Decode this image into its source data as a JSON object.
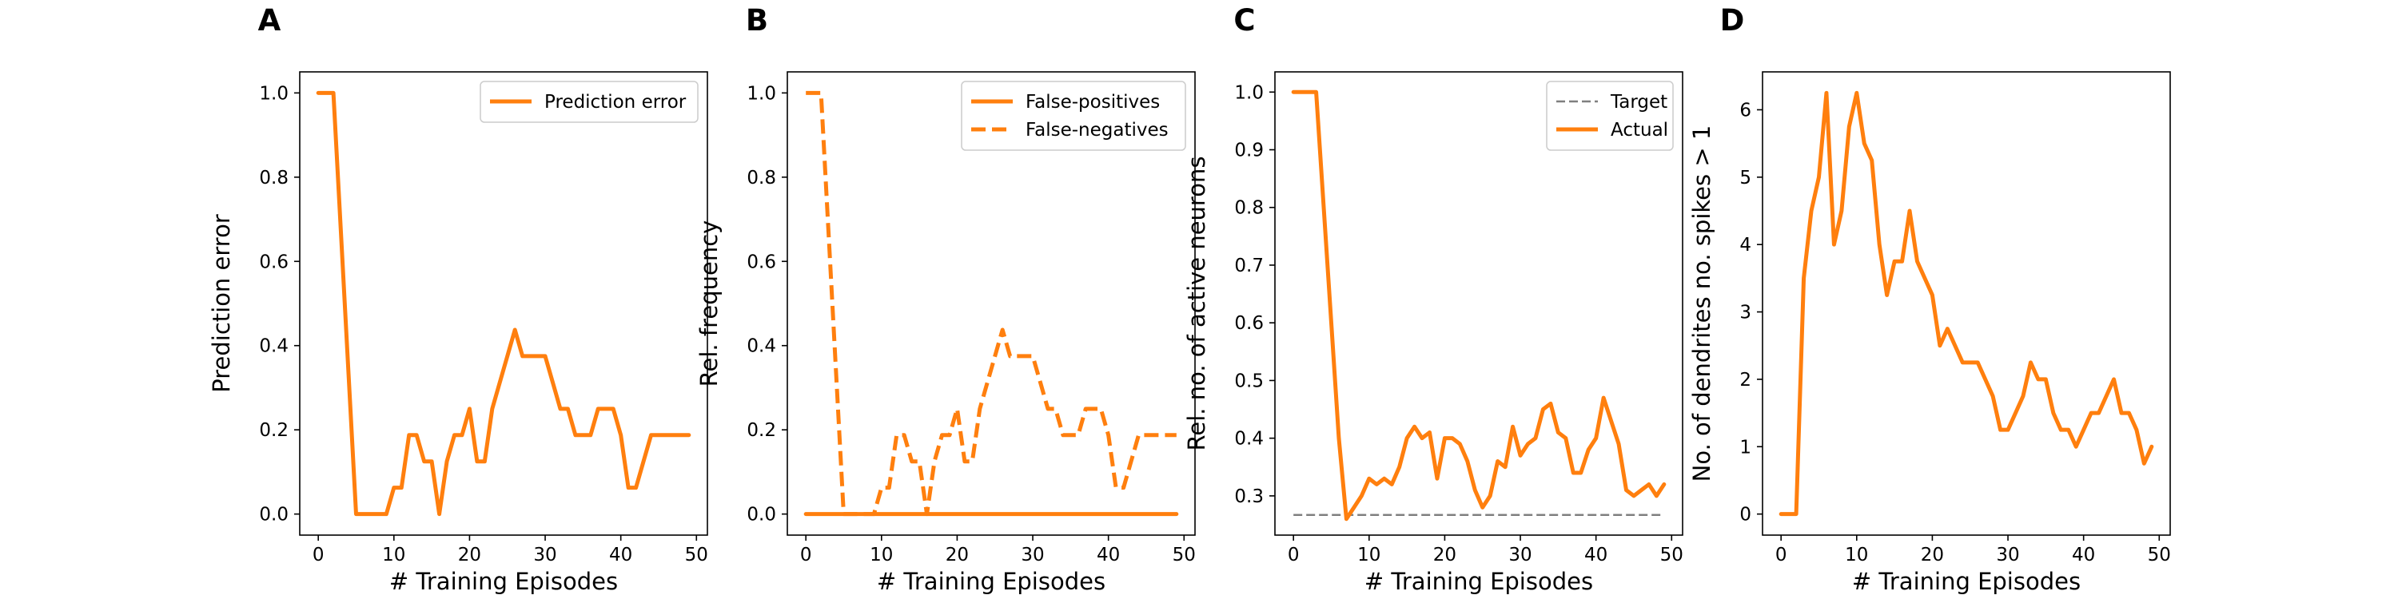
{
  "colors": {
    "series": "#ff7f0e",
    "target": "#7f7f7f",
    "axis": "#000000"
  },
  "chart_data": [
    {
      "type": "line",
      "panel": "A",
      "xlabel": "# Training Episodes",
      "ylabel": "Prediction error",
      "xlim": [
        -2.45,
        51.45
      ],
      "ylim": [
        -0.05,
        1.05
      ],
      "xticks": [
        0,
        10,
        20,
        30,
        40,
        50
      ],
      "yticks": [
        0.0,
        0.2,
        0.4,
        0.6,
        0.8,
        1.0
      ],
      "ytick_labels": [
        "0.0",
        "0.2",
        "0.4",
        "0.6",
        "0.8",
        "1.0"
      ],
      "legend_position": "upper right",
      "grid": false,
      "series": [
        {
          "name": "Prediction error",
          "style": "solid",
          "color": "#ff7f0e",
          "x": [
            0,
            1,
            2,
            3,
            4,
            5,
            6,
            7,
            8,
            9,
            10,
            11,
            12,
            13,
            14,
            15,
            16,
            17,
            18,
            19,
            20,
            21,
            22,
            23,
            24,
            25,
            26,
            27,
            28,
            29,
            30,
            31,
            32,
            33,
            34,
            35,
            36,
            37,
            38,
            39,
            40,
            41,
            42,
            43,
            44,
            45,
            46,
            47,
            48,
            49
          ],
          "y": [
            1.0,
            1.0,
            1.0,
            0.667,
            0.333,
            0.0,
            0.0,
            0.0,
            0.0,
            0.0,
            0.0625,
            0.0625,
            0.1875,
            0.1875,
            0.125,
            0.125,
            0.0,
            0.125,
            0.1875,
            0.1875,
            0.25,
            0.125,
            0.125,
            0.25,
            0.3125,
            0.375,
            0.4375,
            0.375,
            0.375,
            0.375,
            0.375,
            0.3125,
            0.25,
            0.25,
            0.1875,
            0.1875,
            0.1875,
            0.25,
            0.25,
            0.25,
            0.1875,
            0.0625,
            0.0625,
            0.125,
            0.1875,
            0.1875,
            0.1875,
            0.1875,
            0.1875,
            0.1875
          ]
        }
      ]
    },
    {
      "type": "line",
      "panel": "B",
      "xlabel": "# Training Episodes",
      "ylabel": "Rel. frequency",
      "xlim": [
        -2.45,
        51.45
      ],
      "ylim": [
        -0.05,
        1.05
      ],
      "xticks": [
        0,
        10,
        20,
        30,
        40,
        50
      ],
      "yticks": [
        0.0,
        0.2,
        0.4,
        0.6,
        0.8,
        1.0
      ],
      "ytick_labels": [
        "0.0",
        "0.2",
        "0.4",
        "0.6",
        "0.8",
        "1.0"
      ],
      "legend_position": "upper right",
      "grid": false,
      "series": [
        {
          "name": "False-positives",
          "style": "solid",
          "color": "#ff7f0e",
          "x": [
            0,
            1,
            2,
            3,
            4,
            5,
            6,
            7,
            8,
            9,
            10,
            11,
            12,
            13,
            14,
            15,
            16,
            17,
            18,
            19,
            20,
            21,
            22,
            23,
            24,
            25,
            26,
            27,
            28,
            29,
            30,
            31,
            32,
            33,
            34,
            35,
            36,
            37,
            38,
            39,
            40,
            41,
            42,
            43,
            44,
            45,
            46,
            47,
            48,
            49
          ],
          "y": [
            0,
            0,
            0,
            0,
            0,
            0,
            0,
            0,
            0,
            0,
            0,
            0,
            0,
            0,
            0,
            0,
            0,
            0,
            0,
            0,
            0,
            0,
            0,
            0,
            0,
            0,
            0,
            0,
            0,
            0,
            0,
            0,
            0,
            0,
            0,
            0,
            0,
            0,
            0,
            0,
            0,
            0,
            0,
            0,
            0,
            0,
            0,
            0,
            0,
            0
          ]
        },
        {
          "name": "False-negatives",
          "style": "dashed",
          "color": "#ff7f0e",
          "x": [
            0,
            1,
            2,
            3,
            4,
            5,
            6,
            7,
            8,
            9,
            10,
            11,
            12,
            13,
            14,
            15,
            16,
            17,
            18,
            19,
            20,
            21,
            22,
            23,
            24,
            25,
            26,
            27,
            28,
            29,
            30,
            31,
            32,
            33,
            34,
            35,
            36,
            37,
            38,
            39,
            40,
            41,
            42,
            43,
            44,
            45,
            46,
            47,
            48,
            49
          ],
          "y": [
            1.0,
            1.0,
            1.0,
            0.667,
            0.333,
            0.0,
            0.0,
            0.0,
            0.0,
            0.0,
            0.0625,
            0.0625,
            0.1875,
            0.1875,
            0.125,
            0.125,
            0.0,
            0.125,
            0.1875,
            0.1875,
            0.25,
            0.125,
            0.125,
            0.25,
            0.3125,
            0.375,
            0.4375,
            0.375,
            0.375,
            0.375,
            0.375,
            0.3125,
            0.25,
            0.25,
            0.1875,
            0.1875,
            0.1875,
            0.25,
            0.25,
            0.25,
            0.1875,
            0.0625,
            0.0625,
            0.125,
            0.1875,
            0.1875,
            0.1875,
            0.1875,
            0.1875,
            0.1875
          ]
        }
      ]
    },
    {
      "type": "line",
      "panel": "C",
      "xlabel": "# Training Episodes",
      "ylabel": "Rel. no. of active neurons",
      "xlim": [
        -2.45,
        51.45
      ],
      "ylim": [
        0.232,
        1.035
      ],
      "xticks": [
        0,
        10,
        20,
        30,
        40,
        50
      ],
      "yticks": [
        0.3,
        0.4,
        0.5,
        0.6,
        0.7,
        0.8,
        0.9,
        1.0
      ],
      "ytick_labels": [
        "0.3",
        "0.4",
        "0.5",
        "0.6",
        "0.7",
        "0.8",
        "0.9",
        "1.0"
      ],
      "legend_position": "upper right",
      "grid": false,
      "series": [
        {
          "name": "Target",
          "style": "dashed",
          "color": "#7f7f7f",
          "x": [
            0,
            49
          ],
          "y": [
            0.267,
            0.267
          ]
        },
        {
          "name": "Actual",
          "style": "solid",
          "color": "#ff7f0e",
          "x": [
            0,
            1,
            2,
            3,
            4,
            5,
            6,
            7,
            8,
            9,
            10,
            11,
            12,
            13,
            14,
            15,
            16,
            17,
            18,
            19,
            20,
            21,
            22,
            23,
            24,
            25,
            26,
            27,
            28,
            29,
            30,
            31,
            32,
            33,
            34,
            35,
            36,
            37,
            38,
            39,
            40,
            41,
            42,
            43,
            44,
            45,
            46,
            47,
            48,
            49
          ],
          "y": [
            1.0,
            1.0,
            1.0,
            1.0,
            0.8,
            0.6,
            0.4,
            0.26,
            0.28,
            0.3,
            0.33,
            0.32,
            0.33,
            0.32,
            0.35,
            0.4,
            0.42,
            0.4,
            0.41,
            0.33,
            0.4,
            0.4,
            0.39,
            0.36,
            0.31,
            0.28,
            0.3,
            0.36,
            0.35,
            0.42,
            0.37,
            0.39,
            0.4,
            0.45,
            0.46,
            0.41,
            0.4,
            0.34,
            0.34,
            0.38,
            0.4,
            0.47,
            0.43,
            0.39,
            0.31,
            0.3,
            0.31,
            0.32,
            0.3,
            0.32
          ]
        }
      ]
    },
    {
      "type": "line",
      "panel": "D",
      "xlabel": "# Training Episodes",
      "ylabel": "No. of dendrites no. spikes > 1",
      "xlim": [
        -2.45,
        51.45
      ],
      "ylim": [
        -0.3125,
        6.5625
      ],
      "xticks": [
        0,
        10,
        20,
        30,
        40,
        50
      ],
      "yticks": [
        0,
        1,
        2,
        3,
        4,
        5,
        6
      ],
      "ytick_labels": [
        "0",
        "1",
        "2",
        "3",
        "4",
        "5",
        "6"
      ],
      "grid": false,
      "series": [
        {
          "style": "solid",
          "color": "#ff7f0e",
          "x": [
            0,
            1,
            2,
            3,
            4,
            5,
            6,
            7,
            8,
            9,
            10,
            11,
            12,
            13,
            14,
            15,
            16,
            17,
            18,
            19,
            20,
            21,
            22,
            23,
            24,
            25,
            26,
            27,
            28,
            29,
            30,
            31,
            32,
            33,
            34,
            35,
            36,
            37,
            38,
            39,
            40,
            41,
            42,
            43,
            44,
            45,
            46,
            47,
            48,
            49
          ],
          "y": [
            0,
            0,
            0,
            3.5,
            4.5,
            5.0,
            6.25,
            4.0,
            4.5,
            5.75,
            6.25,
            5.5,
            5.25,
            4.0,
            3.25,
            3.75,
            3.75,
            4.5,
            3.75,
            3.5,
            3.25,
            2.5,
            2.75,
            2.5,
            2.25,
            2.25,
            2.25,
            2.0,
            1.75,
            1.25,
            1.25,
            1.5,
            1.75,
            2.25,
            2.0,
            2.0,
            1.5,
            1.25,
            1.25,
            1.0,
            1.25,
            1.5,
            1.5,
            1.75,
            2.0,
            1.5,
            1.5,
            1.25,
            0.75,
            1.0
          ]
        }
      ]
    }
  ]
}
